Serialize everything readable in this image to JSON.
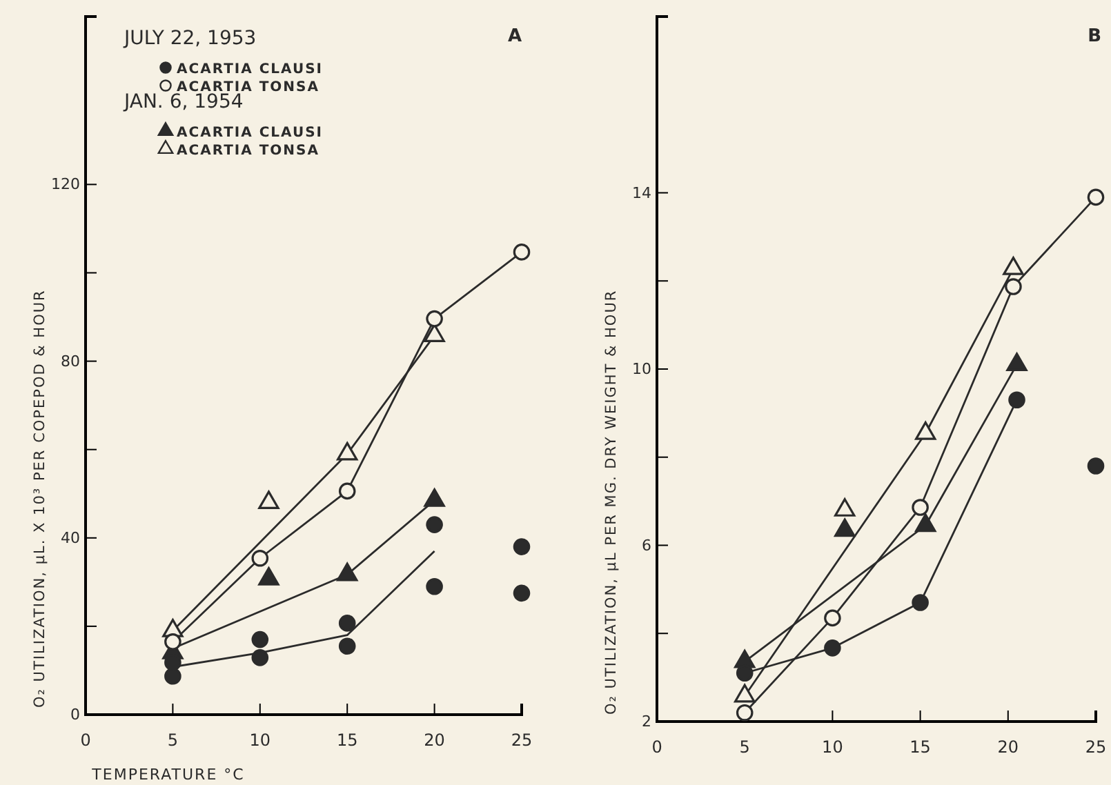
{
  "chart_data": [
    {
      "type": "scatter",
      "title": "A",
      "xlabel": "TEMPERATURE °C",
      "ylabel": "O₂ UTILIZATION, μL. X 10³ PER COPEPOD & HOUR",
      "xlim": [
        0,
        25
      ],
      "xticks": [
        0,
        5,
        10,
        15,
        20,
        25
      ],
      "ylim": [
        0,
        158
      ],
      "yticks": [
        0,
        {
          "value": 20,
          "label": null
        },
        40,
        {
          "value": 60,
          "label": null
        },
        80,
        {
          "value": 100,
          "label": null
        },
        120
      ],
      "grid": false,
      "legend": "top",
      "annotations": [
        "JULY 22, 1953",
        "JAN. 6, 1954"
      ],
      "series": [
        {
          "name": "ACARTIA CLAUSI",
          "marker": "circle",
          "color": "#2b2b2b",
          "x": [
            5,
            5,
            10,
            10,
            15,
            15,
            20,
            20,
            25,
            25
          ],
          "values": [
            11.8,
            8.7,
            17,
            12.9,
            20.7,
            15.5,
            43,
            29,
            38,
            27.5
          ]
        },
        {
          "name": "ACARTIA TONSA",
          "marker": "circle",
          "color": "#f6f1e4",
          "x": [
            5,
            10,
            15,
            20,
            25
          ],
          "values": [
            16.5,
            35.4,
            50.6,
            89.6,
            104.7
          ]
        },
        {
          "name": "ACARTIA CLAUSI",
          "marker": "triangle",
          "color": "#2b2b2b",
          "x": [
            5,
            10.5,
            15,
            20
          ],
          "values": [
            14,
            30.7,
            31.7,
            48.5
          ]
        },
        {
          "name": "ACARTIA TONSA",
          "marker": "triangle",
          "color": "#f6f1e4",
          "x": [
            5,
            10.5,
            15,
            20
          ],
          "values": [
            19,
            48,
            59,
            85.8
          ]
        },
        {
          "type": "line",
          "color": "#2b2b2b",
          "x": [
            5,
            10,
            15,
            20
          ],
          "values": [
            10.8,
            14,
            18,
            37
          ]
        },
        {
          "type": "line",
          "color": "#2b2b2b",
          "x": [
            5,
            15,
            20
          ],
          "values": [
            15,
            31.7,
            48.5
          ]
        },
        {
          "type": "line",
          "color": "#2b2b2b",
          "x": [
            5,
            10,
            15,
            20,
            25
          ],
          "values": [
            16.5,
            35.4,
            50.6,
            89.6,
            104.7
          ]
        },
        {
          "type": "line",
          "color": "#2b2b2b",
          "x": [
            5,
            15,
            20
          ],
          "values": [
            19,
            59,
            85.8
          ]
        }
      ]
    },
    {
      "type": "scatter",
      "title": "B",
      "ylabel": "O₂ UTILIZATION, μL PER MG. DRY WEIGHT & HOUR",
      "xlim": [
        0,
        25
      ],
      "xticks": [
        0,
        5,
        10,
        15,
        20,
        25
      ],
      "ylim": [
        2,
        18
      ],
      "yticks": [
        2,
        {
          "value": 4,
          "label": null
        },
        6,
        {
          "value": 8,
          "label": null
        },
        10,
        {
          "value": 12,
          "label": null
        },
        14
      ],
      "grid": false,
      "legend": false,
      "series": [
        {
          "marker": "circle",
          "color": "#2b2b2b",
          "x": [
            5,
            10,
            15,
            20.5,
            25
          ],
          "values": [
            3.1,
            3.67,
            4.7,
            9.3,
            7.8
          ]
        },
        {
          "marker": "circle",
          "color": "#f6f1e4",
          "x": [
            5,
            10,
            15,
            20.3,
            25
          ],
          "values": [
            2.2,
            4.35,
            6.86,
            11.87,
            13.9
          ]
        },
        {
          "marker": "triangle",
          "color": "#2b2b2b",
          "x": [
            5,
            10.7,
            15.3,
            20.5
          ],
          "values": [
            3.36,
            6.34,
            6.45,
            10.1
          ]
        },
        {
          "marker": "triangle",
          "color": "#f6f1e4",
          "x": [
            5,
            10.7,
            15.3,
            20.3
          ],
          "values": [
            2.58,
            6.8,
            8.54,
            12.28
          ]
        },
        {
          "type": "line",
          "color": "#2b2b2b",
          "x": [
            5,
            10,
            15,
            20.5
          ],
          "values": [
            3.1,
            3.67,
            4.7,
            9.3
          ]
        },
        {
          "type": "line",
          "color": "#2b2b2b",
          "x": [
            5,
            10,
            15,
            20.3,
            25
          ],
          "values": [
            2.2,
            4.35,
            6.86,
            11.87,
            13.9
          ]
        },
        {
          "type": "line",
          "color": "#2b2b2b",
          "x": [
            5,
            15.3,
            20.5
          ],
          "values": [
            3.36,
            6.45,
            10.1
          ]
        },
        {
          "type": "line",
          "color": "#2b2b2b",
          "x": [
            5,
            15.3,
            20.3
          ],
          "values": [
            2.58,
            8.54,
            12.28
          ]
        }
      ]
    }
  ]
}
